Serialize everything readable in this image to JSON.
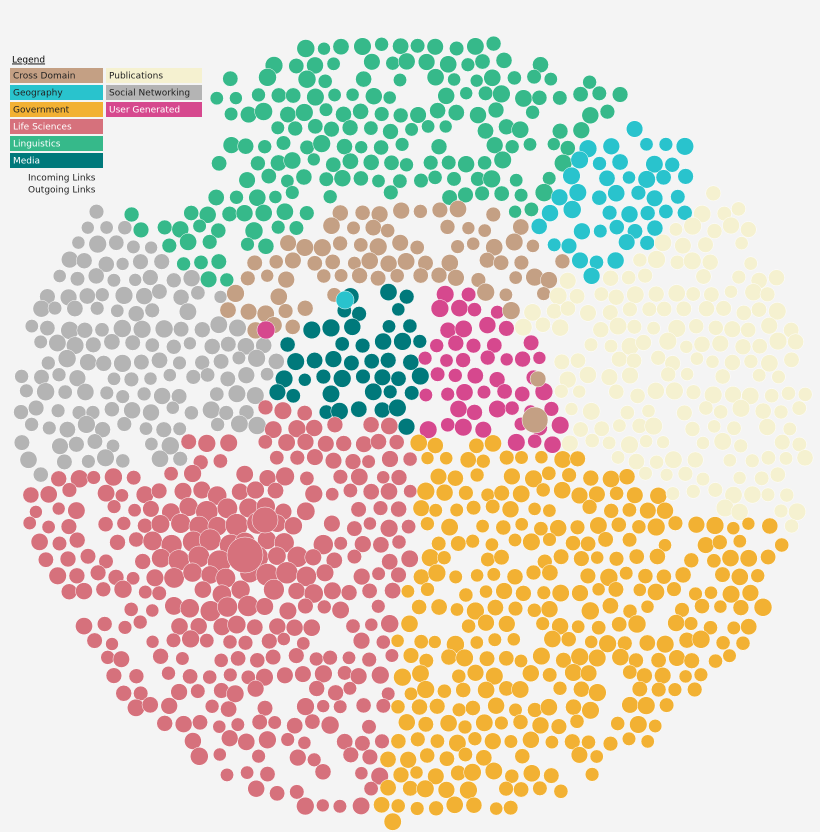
{
  "legend": {
    "title": "Legend",
    "items": [
      {
        "label": "Cross Domain",
        "color": "#c4a084"
      },
      {
        "label": "Geography",
        "color": "#29c3cd"
      },
      {
        "label": "Government",
        "color": "#f2b133"
      },
      {
        "label": "Life Sciences",
        "color": "#d6717c"
      },
      {
        "label": "Linguistics",
        "color": "#36b98a"
      },
      {
        "label": "Media",
        "color": "#00797b"
      },
      {
        "label": "Publications",
        "color": "#f5f1d0"
      },
      {
        "label": "Social Networking",
        "color": "#b4b4b4"
      },
      {
        "label": "User Generated",
        "color": "#d6488e"
      }
    ],
    "links": [
      "Incoming Links",
      "Outgoing Links"
    ]
  }
}
